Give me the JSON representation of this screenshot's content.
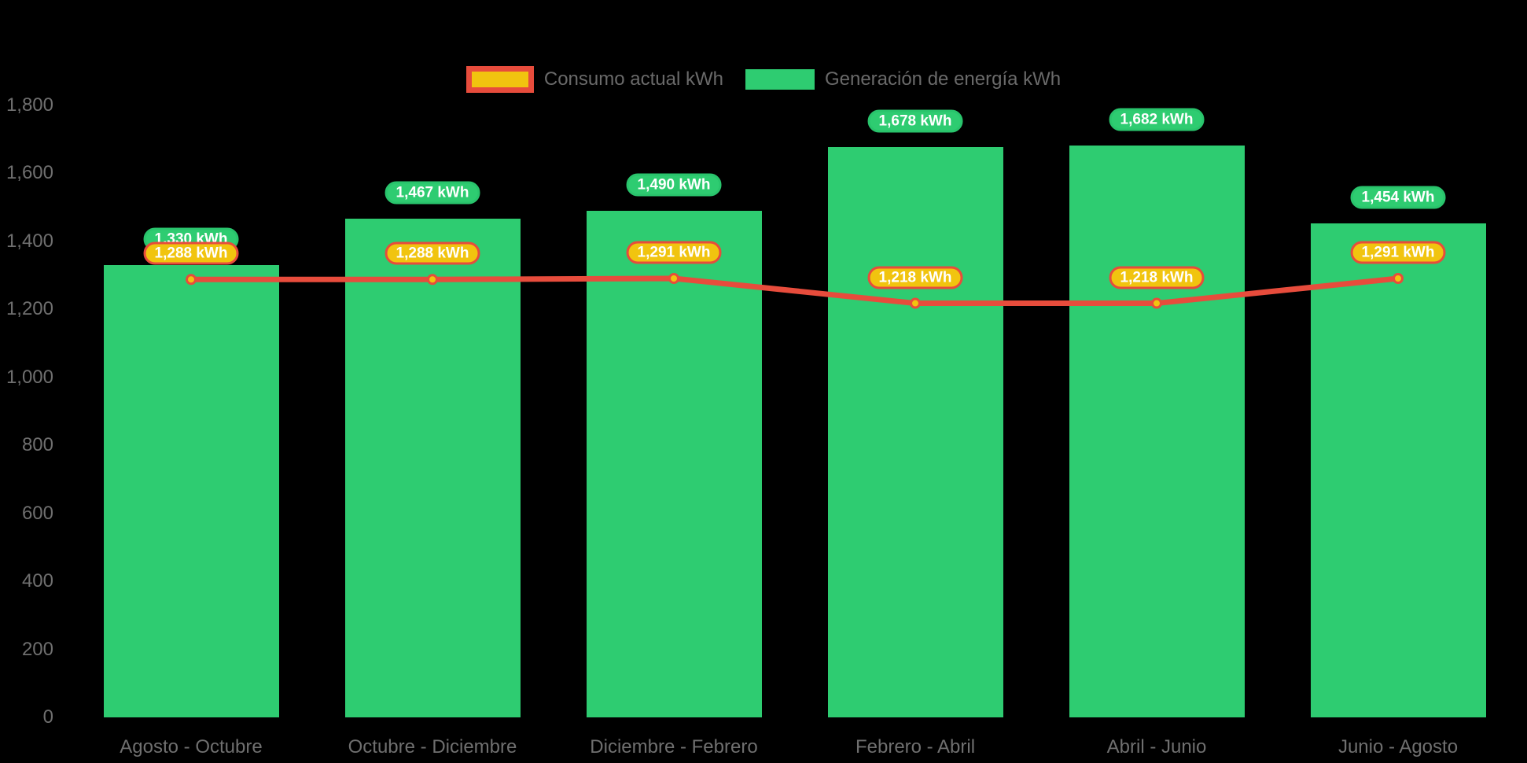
{
  "background_color": "#000000",
  "legend": {
    "consumption_label": "Consumo actual kWh",
    "generation_label": "Generación de energía kWh"
  },
  "colors": {
    "bar_green": "#2ECC71",
    "green_badge_border": "#29C46C",
    "line_red": "#E74C3C",
    "badge_gold": "#F1C40F",
    "badge_text": "#FFFFFF",
    "axis_text": "#6F6F6F",
    "legend_text": "#6A6A6A"
  },
  "chart_data": {
    "type": "bar",
    "subtype": "bar-with-line-overlay",
    "title": "",
    "xlabel": "",
    "ylabel": "",
    "categories": [
      "Agosto - Octubre",
      "Octubre - Diciembre",
      "Diciembre - Febrero",
      "Febrero - Abril",
      "Abril - Junio",
      "Junio - Agosto"
    ],
    "series": [
      {
        "name": "Generación de energía kWh",
        "type": "bar",
        "color": "#2ECC71",
        "values": [
          1330,
          1467,
          1490,
          1678,
          1682,
          1454
        ],
        "labels": [
          "1,330 kWh",
          "1,467 kWh",
          "1,490 kWh",
          "1,678 kWh",
          "1,682 kWh",
          "1,454 kWh"
        ]
      },
      {
        "name": "Consumo actual kWh",
        "type": "line",
        "color": "#E74C3C",
        "point_color": "#F1C40F",
        "values": [
          1288,
          1288,
          1291,
          1218,
          1218,
          1291
        ],
        "labels": [
          "1,288 kWh",
          "1,288 kWh",
          "1,291 kWh",
          "1,218 kWh",
          "1,218 kWh",
          "1,291 kWh"
        ]
      }
    ],
    "ylim": [
      0,
      1800
    ],
    "ytick_step": 200,
    "ytick_labels": [
      "0",
      "200",
      "400",
      "600",
      "800",
      "1,000",
      "1,200",
      "1,400",
      "1,600",
      "1,800"
    ],
    "grid": false,
    "legend_position": "top-center"
  }
}
